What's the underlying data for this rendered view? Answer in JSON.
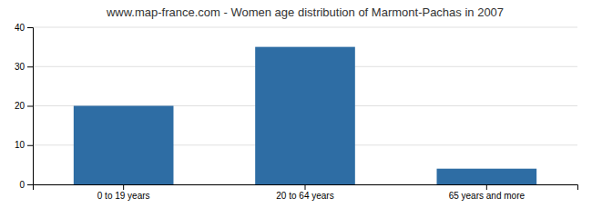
{
  "chart_data": {
    "type": "bar",
    "title": "www.map-france.com - Women age distribution of Marmont-Pachas in 2007",
    "categories": [
      "0 to 19 years",
      "20 to 64 years",
      "65 years and more"
    ],
    "values": [
      20,
      35,
      4
    ],
    "color": "#2e6da4",
    "ylim": [
      0,
      40
    ],
    "yticks": [
      0,
      10,
      20,
      30,
      40
    ],
    "grid": true
  }
}
